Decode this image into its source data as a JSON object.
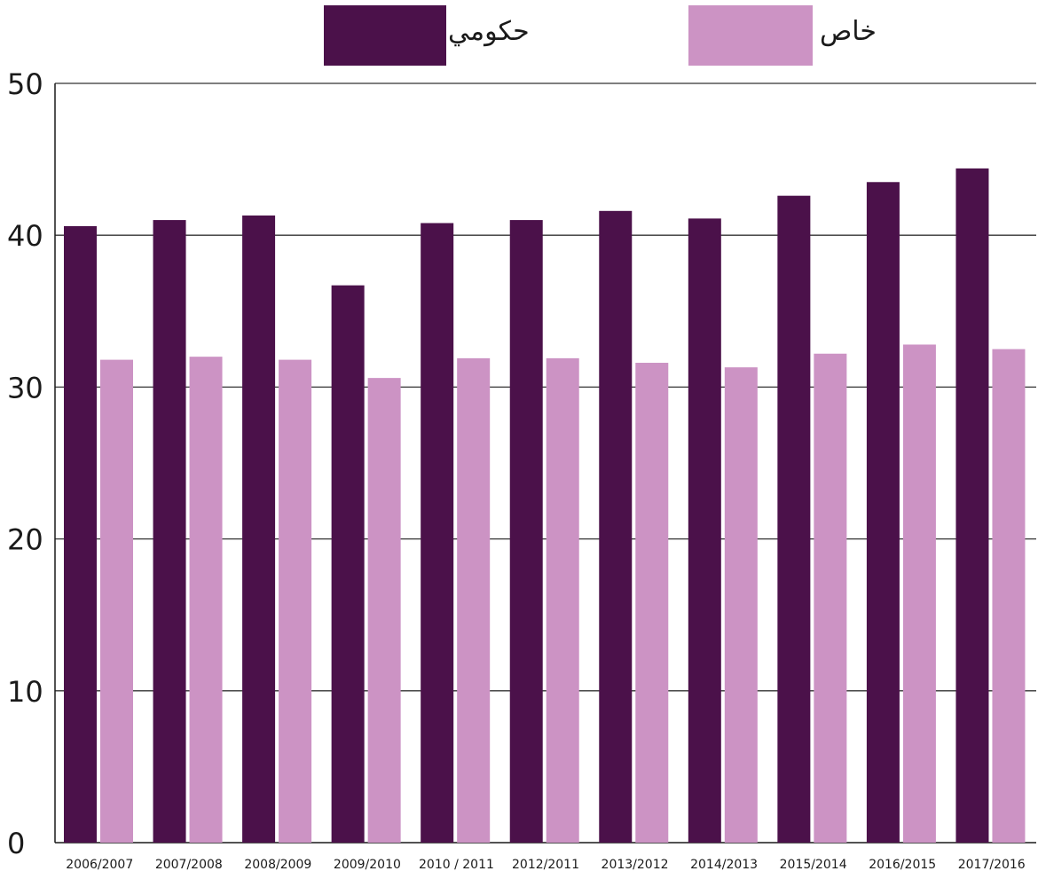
{
  "chart_data": {
    "type": "bar",
    "categories": [
      "2006/2007",
      "2007/2008",
      "2008/2009",
      "2009/2010",
      "2010 / 2011",
      "2012/2011",
      "2013/2012",
      "2014/2013",
      "2015/2014",
      "2016/2015",
      "2017/2016"
    ],
    "series": [
      {
        "name": "حكومي",
        "color": "#4b114a",
        "values": [
          40.6,
          41.0,
          41.3,
          36.7,
          40.8,
          41.0,
          41.6,
          41.1,
          42.6,
          43.5,
          44.4
        ]
      },
      {
        "name": "خاص",
        "color": "#cc93c4",
        "values": [
          31.8,
          32.0,
          31.8,
          30.6,
          31.9,
          31.9,
          31.6,
          31.3,
          32.2,
          32.8,
          32.5
        ]
      }
    ],
    "ylim": [
      0,
      50
    ],
    "yticks": [
      "0",
      "10",
      "20",
      "30",
      "40",
      "50"
    ],
    "grid": true,
    "legend_position": "top"
  }
}
